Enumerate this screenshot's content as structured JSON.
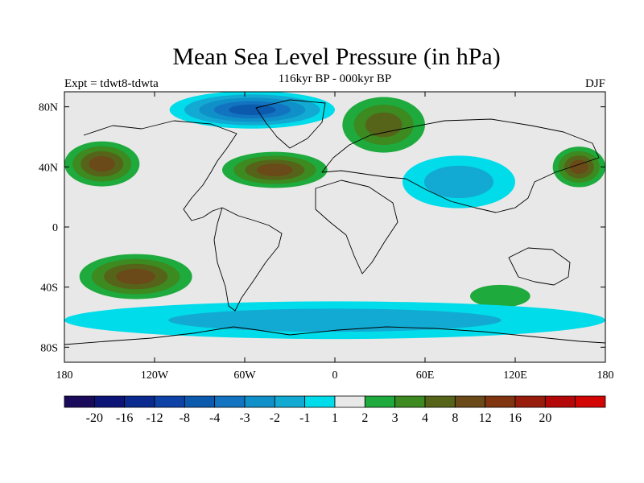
{
  "chart_data": {
    "type": "contour-map",
    "title": "Mean Sea Level Pressure (in hPa)",
    "subtitle_left": "Expt = tdwt8-tdwta",
    "subtitle_center": "116kyr BP - 000kyr BP",
    "subtitle_right": "DJF",
    "lon_range": [
      -180,
      180
    ],
    "lat_range": [
      -90,
      90
    ],
    "x_ticks": [
      {
        "value": -180,
        "label": "180"
      },
      {
        "value": -120,
        "label": "120W"
      },
      {
        "value": -60,
        "label": "60W"
      },
      {
        "value": 0,
        "label": "0"
      },
      {
        "value": 60,
        "label": "60E"
      },
      {
        "value": 120,
        "label": "120E"
      },
      {
        "value": 180,
        "label": "180"
      }
    ],
    "y_ticks": [
      {
        "value": 80,
        "label": "80N"
      },
      {
        "value": 40,
        "label": "40N"
      },
      {
        "value": 0,
        "label": "0"
      },
      {
        "value": -40,
        "label": "40S"
      },
      {
        "value": -80,
        "label": "80S"
      }
    ],
    "colorbar": {
      "colors": [
        "#1a0a5c",
        "#0c1478",
        "#0a2a90",
        "#0e42a6",
        "#0c5aae",
        "#1274c0",
        "#1090c8",
        "#12aad2",
        "#00dcea",
        "#e8e8e8",
        "#1eaa3c",
        "#3c8a20",
        "#56641a",
        "#6a4a18",
        "#803410",
        "#981c0c",
        "#b40808",
        "#d20404"
      ],
      "labels": [
        "-20",
        "-16",
        "-12",
        "-8",
        "-4",
        "-3",
        "-2",
        "-1",
        "1",
        "2",
        "3",
        "4",
        "8",
        "12",
        "16",
        "20"
      ]
    },
    "regions": [
      {
        "name": "north-pacific-high",
        "level": 4,
        "lon_range": [
          -180,
          -130
        ],
        "lat_range": [
          25,
          55
        ],
        "peak_lat": 42
      },
      {
        "name": "north-pacific-high-west",
        "level": 4,
        "lon_range": [
          145,
          180
        ],
        "lat_range": [
          28,
          55
        ],
        "peak_lat": 40
      },
      {
        "name": "north-atlantic-high",
        "level": 4,
        "lon_range": [
          -75,
          -5
        ],
        "lat_range": [
          28,
          52
        ],
        "peak_lat": 38
      },
      {
        "name": "scandinavia-high",
        "level": 3,
        "lon_range": [
          5,
          60
        ],
        "lat_range": [
          45,
          82
        ],
        "peak_lat": 68
      },
      {
        "name": "south-pacific-high",
        "level": 4,
        "lon_range": [
          -170,
          -95
        ],
        "lat_range": [
          -50,
          -20
        ],
        "peak_lat": -33
      },
      {
        "name": "south-indian-high",
        "level": 1,
        "lon_range": [
          90,
          130
        ],
        "lat_range": [
          -55,
          -40
        ],
        "peak_lat": -46
      },
      {
        "name": "arctic-low",
        "level": -4,
        "lon_range": [
          -110,
          0
        ],
        "lat_range": [
          65,
          90
        ],
        "peak_lat": 78
      },
      {
        "name": "asian-low",
        "level": -2,
        "lon_range": [
          45,
          120
        ],
        "lat_range": [
          15,
          50
        ],
        "peak_lat": 30
      },
      {
        "name": "southern-ocean-low",
        "level": -2,
        "lon_range": [
          -180,
          180
        ],
        "lat_range": [
          -75,
          -50
        ],
        "peak_lat": -62
      }
    ]
  }
}
